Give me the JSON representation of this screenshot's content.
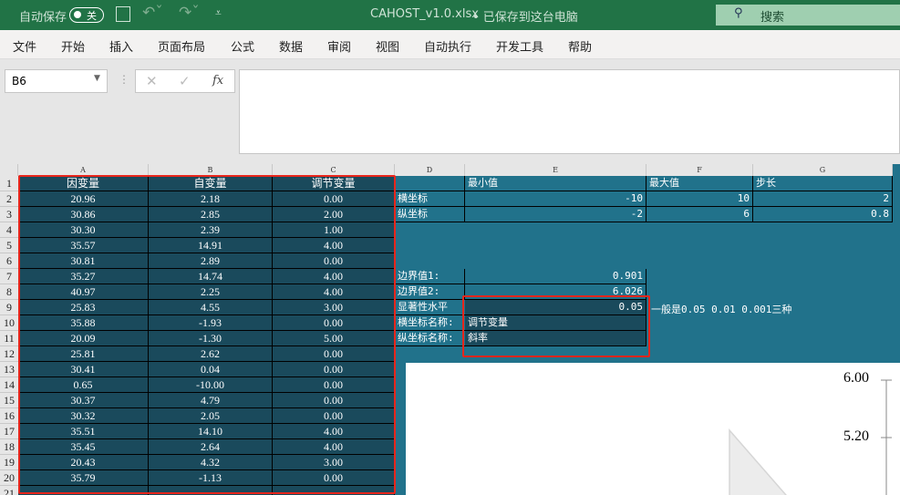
{
  "titlebar": {
    "autosave_label": "自动保存",
    "autosave_state": "关",
    "filename": "CAHOST_v1.0.xlsx",
    "save_status": "• 已保存到这台电脑",
    "search_placeholder": "搜索"
  },
  "ribbon": {
    "tabs": [
      "文件",
      "开始",
      "插入",
      "页面布局",
      "公式",
      "数据",
      "审阅",
      "视图",
      "自动执行",
      "开发工具",
      "帮助"
    ]
  },
  "formula_bar": {
    "name_box": "B6",
    "formula": ""
  },
  "columns": [
    "A",
    "B",
    "C",
    "D",
    "E",
    "F",
    "G"
  ],
  "table": {
    "headers": [
      "因变量",
      "自变量",
      "调节变量"
    ],
    "rows": [
      [
        "20.96",
        "2.18",
        "0.00"
      ],
      [
        "30.86",
        "2.85",
        "2.00"
      ],
      [
        "30.30",
        "2.39",
        "1.00"
      ],
      [
        "35.57",
        "14.91",
        "4.00"
      ],
      [
        "30.81",
        "2.89",
        "0.00"
      ],
      [
        "35.27",
        "14.74",
        "4.00"
      ],
      [
        "40.97",
        "2.25",
        "4.00"
      ],
      [
        "25.83",
        "4.55",
        "3.00"
      ],
      [
        "35.88",
        "-1.93",
        "0.00"
      ],
      [
        "20.09",
        "-1.30",
        "5.00"
      ],
      [
        "25.81",
        "2.62",
        "0.00"
      ],
      [
        "30.41",
        "0.04",
        "0.00"
      ],
      [
        "0.65",
        "-10.00",
        "0.00"
      ],
      [
        "30.37",
        "4.79",
        "0.00"
      ],
      [
        "30.32",
        "2.05",
        "0.00"
      ],
      [
        "35.51",
        "14.10",
        "4.00"
      ],
      [
        "35.45",
        "2.64",
        "4.00"
      ],
      [
        "20.43",
        "4.32",
        "3.00"
      ],
      [
        "35.79",
        "-1.13",
        "0.00"
      ]
    ]
  },
  "axis_settings": {
    "headers": [
      "最小值",
      "最大值",
      "步长"
    ],
    "rows": [
      {
        "label": "横坐标",
        "min": "-10",
        "max": "10",
        "step": "2"
      },
      {
        "label": "纵坐标",
        "min": "-2",
        "max": "6",
        "step": "0.8"
      }
    ]
  },
  "params": {
    "boundary1_label": "边界值1:",
    "boundary1": "0.901",
    "boundary2_label": "边界值2:",
    "boundary2": "6.026",
    "sig_label": "显著性水平",
    "sig": "0.05",
    "sig_note": "一般是0.05 0.01 0.001三种",
    "xname_label": "横坐标名称:",
    "xname": "调节变量",
    "yname_label": "纵坐标名称:",
    "yname": "斜率"
  },
  "chart": {
    "y_ticks": [
      "6.00",
      "5.20"
    ]
  },
  "colors": {
    "title_green": "#217346",
    "sheet_teal": "#21728b",
    "cell_dark": "#1a4a5c",
    "highlight_red": "#e8261c"
  }
}
